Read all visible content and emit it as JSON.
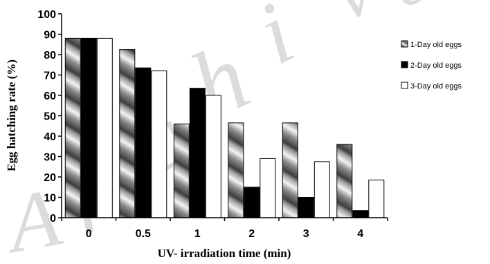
{
  "chart_data": {
    "type": "bar",
    "xlabel": "UV- irradiation time (min)",
    "ylabel": "Egg hatching rate (%)",
    "categories": [
      "0",
      "0.5",
      "1",
      "2",
      "3",
      "4"
    ],
    "series": [
      {
        "name": "1-Day old eggs",
        "values": [
          88,
          82.5,
          46,
          46.5,
          46.5,
          36
        ],
        "color": "#9a9a9a"
      },
      {
        "name": "2-Day old eggs",
        "values": [
          88,
          73.5,
          63.5,
          15,
          10,
          3.5
        ],
        "color": "#000000"
      },
      {
        "name": "3-Day old eggs",
        "values": [
          88,
          72,
          60,
          29,
          27.5,
          18.5
        ],
        "color": "#ffffff"
      }
    ],
    "ylim": [
      0,
      100
    ],
    "yticks": [
      0,
      10,
      20,
      30,
      40,
      50,
      60,
      70,
      80,
      90,
      100
    ],
    "grid": false,
    "legend_position": "right"
  },
  "watermark": {
    "letters": [
      "A",
      "r",
      "c",
      "h",
      "i",
      "v",
      "e"
    ]
  }
}
